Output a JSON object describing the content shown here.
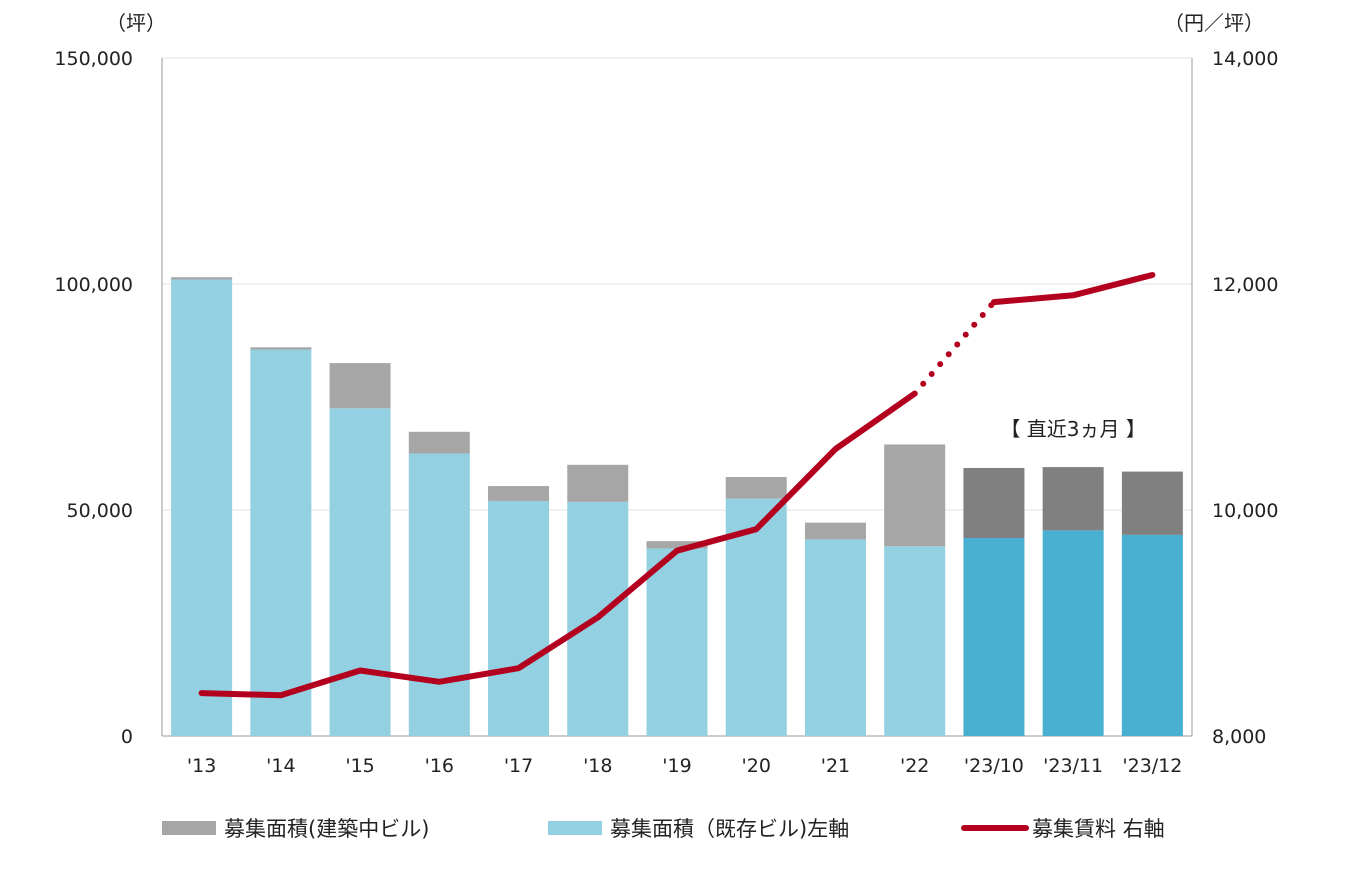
{
  "chart_data": {
    "type": "bar",
    "title": "",
    "categories": [
      "'13",
      "'14",
      "'15",
      "'16",
      "'17",
      "'18",
      "'19",
      "'20",
      "'21",
      "'22",
      "'23/10",
      "'23/11",
      "'23/12"
    ],
    "series": [
      {
        "name": "募集面積(既存ビル)左軸",
        "kind": "bar-stacked",
        "axis": "left",
        "values": [
          101000,
          85500,
          72500,
          62500,
          52000,
          51800,
          41500,
          52500,
          43500,
          42000,
          43800,
          45500,
          44500
        ]
      },
      {
        "name": "募集面積(建築中ビル)",
        "kind": "bar-stacked",
        "axis": "left",
        "values": [
          500,
          500,
          10000,
          4800,
          3300,
          8200,
          1600,
          4800,
          3700,
          22500,
          15500,
          14000,
          14000
        ]
      },
      {
        "name": "募集賃料 右軸",
        "kind": "line",
        "axis": "right",
        "values": [
          8380,
          8360,
          8580,
          8480,
          8600,
          9050,
          9640,
          9830,
          10540,
          11030,
          11840,
          11900,
          12080
        ],
        "dotted_segment_between": [
          9,
          10
        ]
      }
    ],
    "highlight_categories": [
      "'23/10",
      "'23/11",
      "'23/12"
    ],
    "left_axis": {
      "unit": "（坪）",
      "ylim": [
        0,
        150000
      ],
      "ticks": [
        "0",
        "50,000",
        "100,000",
        "150,000"
      ],
      "tick_values": [
        0,
        50000,
        100000,
        150000
      ]
    },
    "right_axis": {
      "unit": "（円／坪）",
      "ylim": [
        8000,
        14000
      ],
      "ticks": [
        "8,000",
        "10,000",
        "12,000",
        "14,000"
      ],
      "tick_values": [
        8000,
        10000,
        12000,
        14000
      ]
    },
    "annotation": "【 直近3ヵ月 】",
    "grid": true,
    "legend_position": "bottom",
    "legend": [
      {
        "label": "募集面積(建築中ビル)",
        "swatch": "bar-gray"
      },
      {
        "label": "募集面積（既存ビル)左軸",
        "swatch": "bar-lightblue"
      },
      {
        "label": "募集賃料 右軸",
        "swatch": "line-red"
      }
    ],
    "colors": {
      "existing": "#93D0E2",
      "existing_recent": "#4AB0D1",
      "construction": "#A6A6A6",
      "construction_recent": "#808080",
      "rent_line": "#B4001F",
      "grid": "#E3E3E3",
      "axis": "#9A9A9A"
    }
  }
}
